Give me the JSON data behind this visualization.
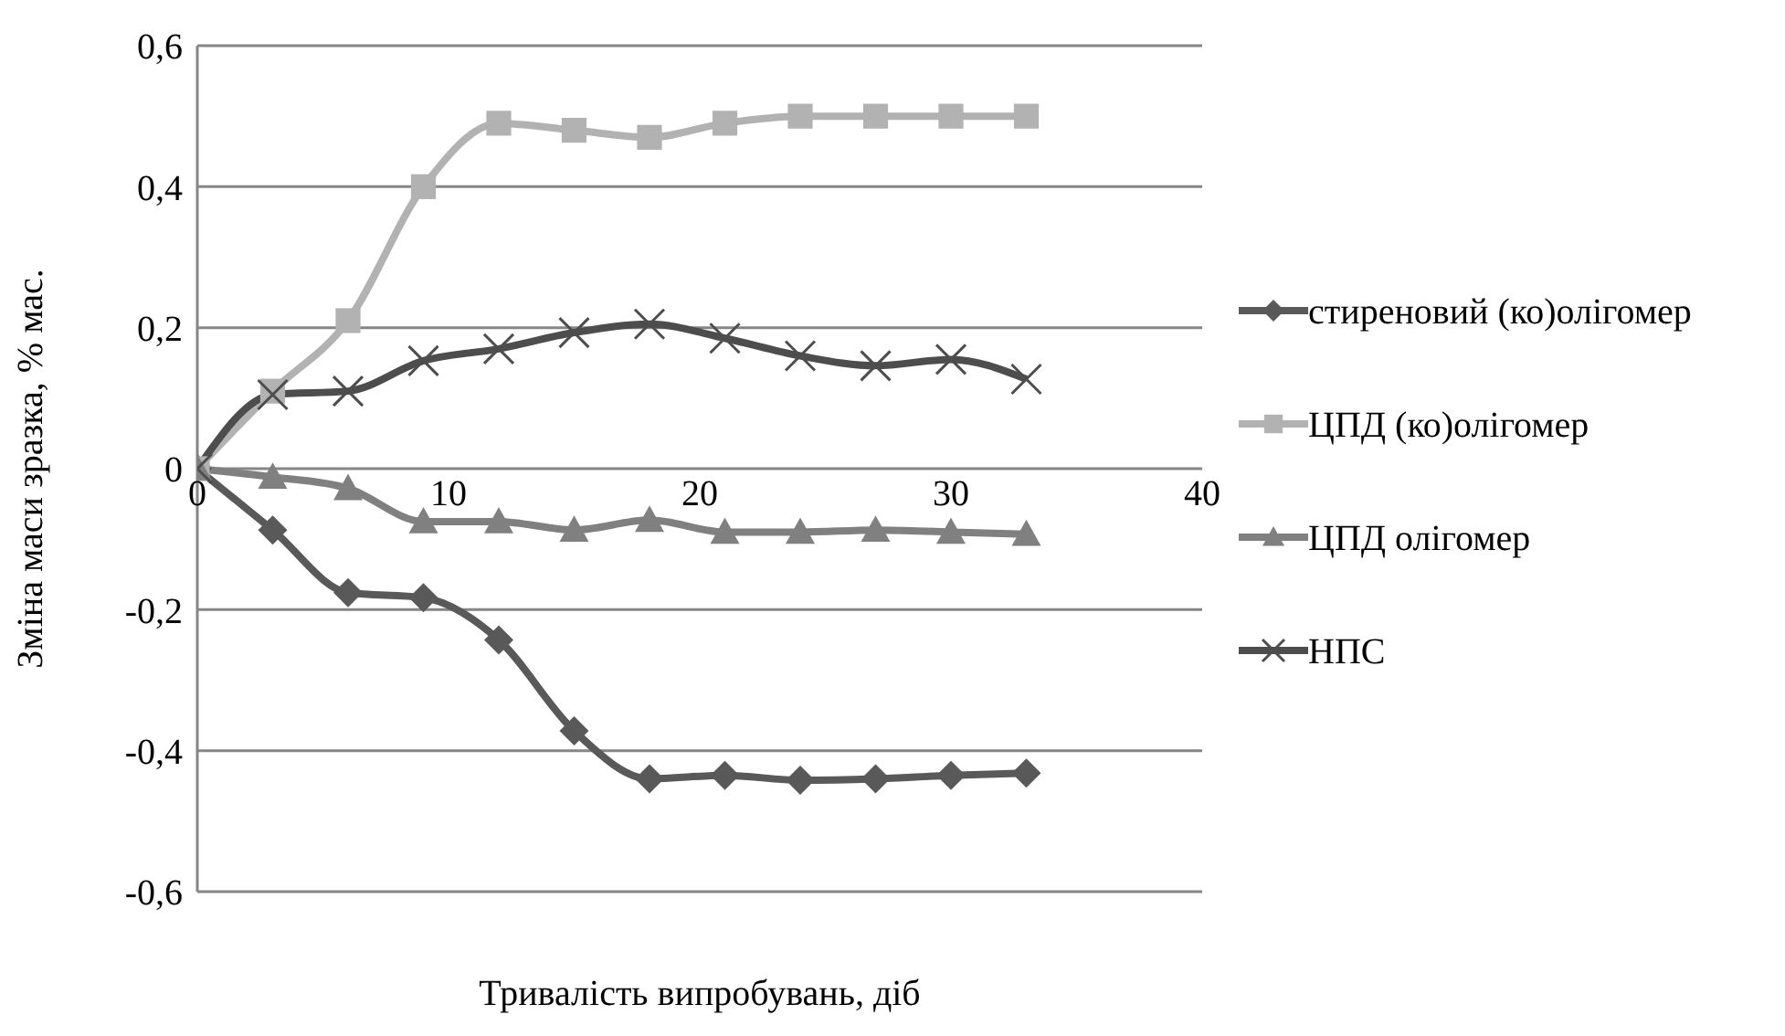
{
  "chart_data": {
    "type": "line",
    "xlabel": "Тривалість випробувань, діб",
    "ylabel": "Зміна маси зразка,  % мас.",
    "x": [
      0,
      3,
      6,
      9,
      12,
      15,
      18,
      21,
      24,
      27,
      30,
      33
    ],
    "xlim": [
      0,
      40
    ],
    "xticks": [
      0,
      10,
      20,
      30,
      40
    ],
    "ylim": [
      -0.6,
      0.6
    ],
    "yticks": [
      {
        "value": -0.6,
        "label": "-0,6"
      },
      {
        "value": -0.4,
        "label": "-0,4"
      },
      {
        "value": -0.2,
        "label": "-0,2"
      },
      {
        "value": 0,
        "label": "0"
      },
      {
        "value": 0.2,
        "label": "0,2"
      },
      {
        "value": 0.4,
        "label": "0,4"
      },
      {
        "value": 0.6,
        "label": "0,6"
      }
    ],
    "grid": "y",
    "legend": "right",
    "line_style": "solid",
    "series": [
      {
        "name": "стиреновий (ко)олігомер",
        "color": "#595959",
        "marker": "diamond",
        "values": [
          0,
          -0.087,
          -0.176,
          -0.183,
          -0.243,
          -0.372,
          -0.44,
          -0.435,
          -0.442,
          -0.44,
          -0.435,
          -0.432
        ]
      },
      {
        "name": "ЦПД (ко)олігомер",
        "color": "#b2b2b2",
        "marker": "square",
        "values": [
          0,
          0.11,
          0.21,
          0.4,
          0.49,
          0.48,
          0.47,
          0.49,
          0.5,
          0.5,
          0.5,
          0.5
        ]
      },
      {
        "name": "ЦПД олігомер",
        "color": "#808080",
        "marker": "triangle",
        "values": [
          0,
          -0.012,
          -0.028,
          -0.075,
          -0.075,
          -0.087,
          -0.073,
          -0.09,
          -0.09,
          -0.087,
          -0.09,
          -0.093
        ]
      },
      {
        "name": "НПС",
        "color": "#4d4d4d",
        "marker": "cross",
        "values": [
          0,
          0.105,
          0.11,
          0.153,
          0.17,
          0.193,
          0.205,
          0.185,
          0.16,
          0.146,
          0.155,
          0.127
        ]
      }
    ]
  }
}
